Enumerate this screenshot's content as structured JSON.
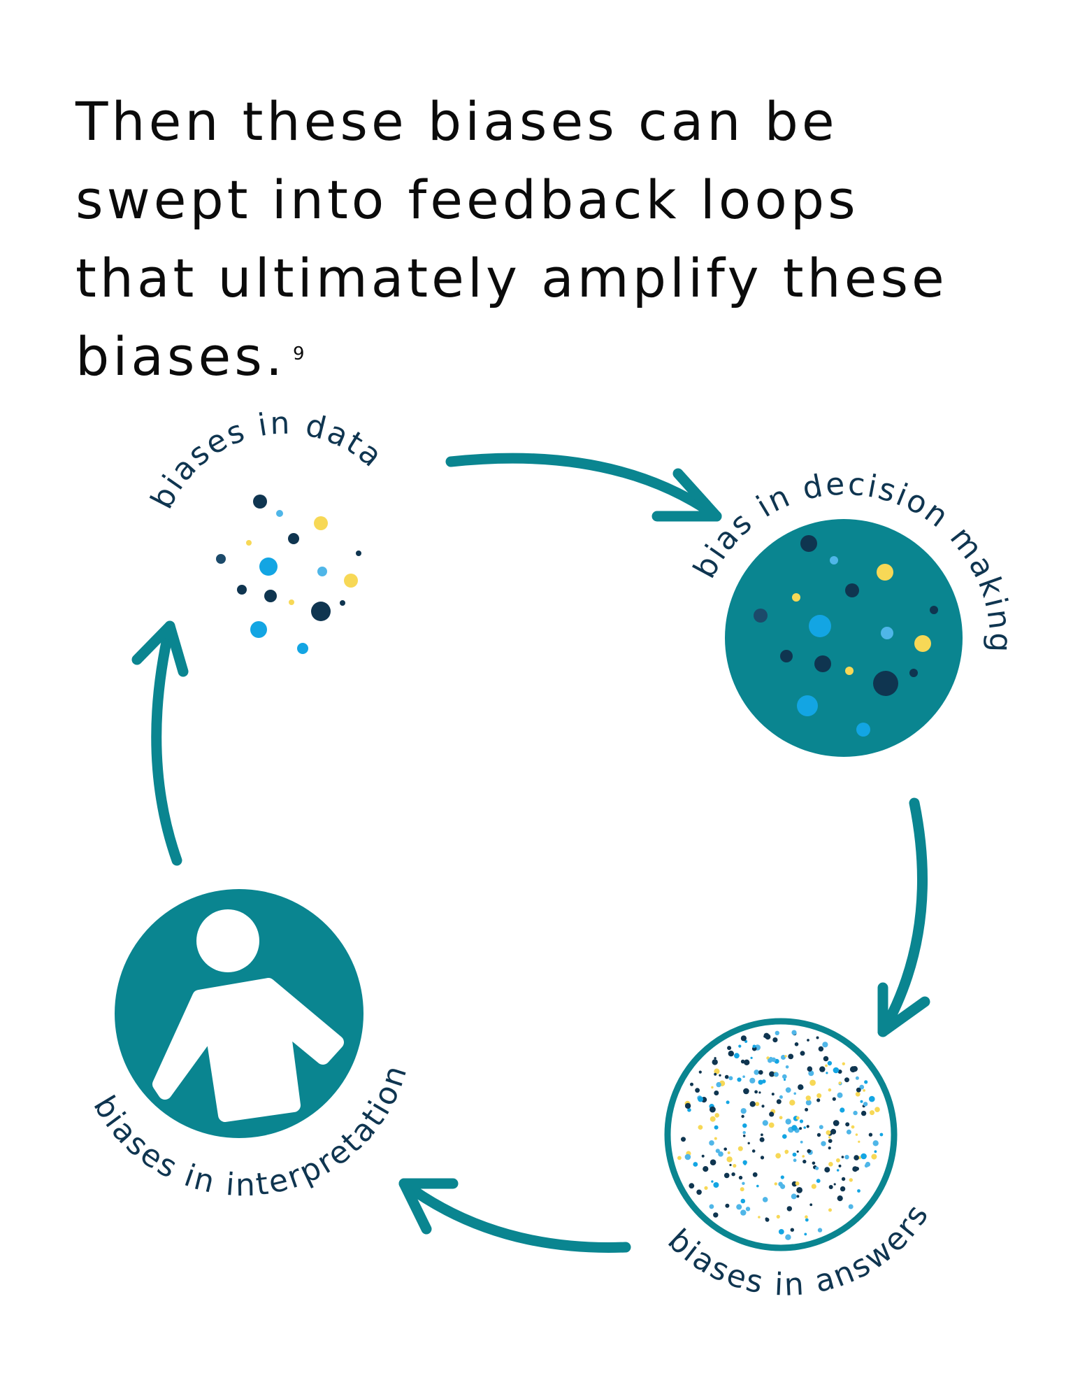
{
  "headline": {
    "lines": [
      "Then these biases can be",
      "swept into feedback loops",
      "that ultimately amplify these",
      "biases."
    ],
    "footnote": "9"
  },
  "nodes": [
    {
      "id": "data",
      "label": "biases in data"
    },
    {
      "id": "decision",
      "label": "bias in decision making"
    },
    {
      "id": "answers",
      "label": "biases in answers"
    },
    {
      "id": "interpretation",
      "label": "biases in interpretation"
    }
  ],
  "colors": {
    "teal": "#0a8590",
    "navy": "#0f3550",
    "blue": "#13a5e3",
    "light_blue": "#4fb6e8",
    "yellow": "#f7d856",
    "text": "#0b0b0b"
  },
  "icons": [
    "person-icon",
    "dot-cluster-icon"
  ]
}
